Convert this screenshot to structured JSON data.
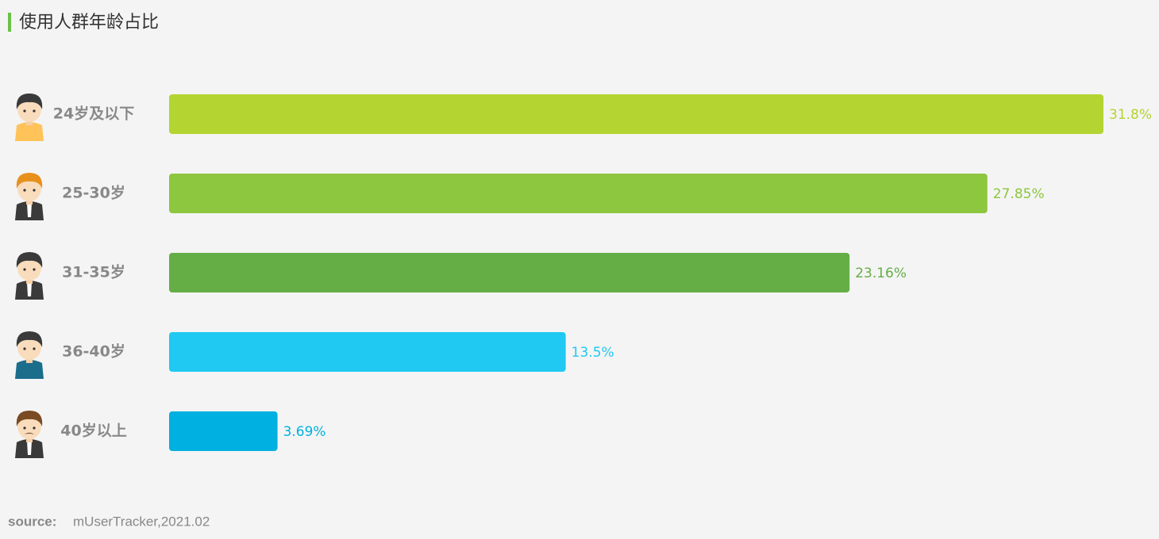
{
  "chart_data": {
    "type": "bar",
    "orientation": "horizontal",
    "title": "使用人群年龄占比",
    "categories": [
      "24岁及以下",
      "25-30岁",
      "31-35岁",
      "36-40岁",
      "40岁以上"
    ],
    "values": [
      31.8,
      27.85,
      23.16,
      13.5,
      3.69
    ],
    "value_labels": [
      "31.8%",
      "27.85%",
      "23.16%",
      "13.5%",
      "3.69%"
    ],
    "colors": [
      "#b3d431",
      "#8dc63f",
      "#65ae46",
      "#1fc9f2",
      "#00b0e0"
    ],
    "source_label": "source:",
    "source": "mUserTracker,2021.02"
  }
}
